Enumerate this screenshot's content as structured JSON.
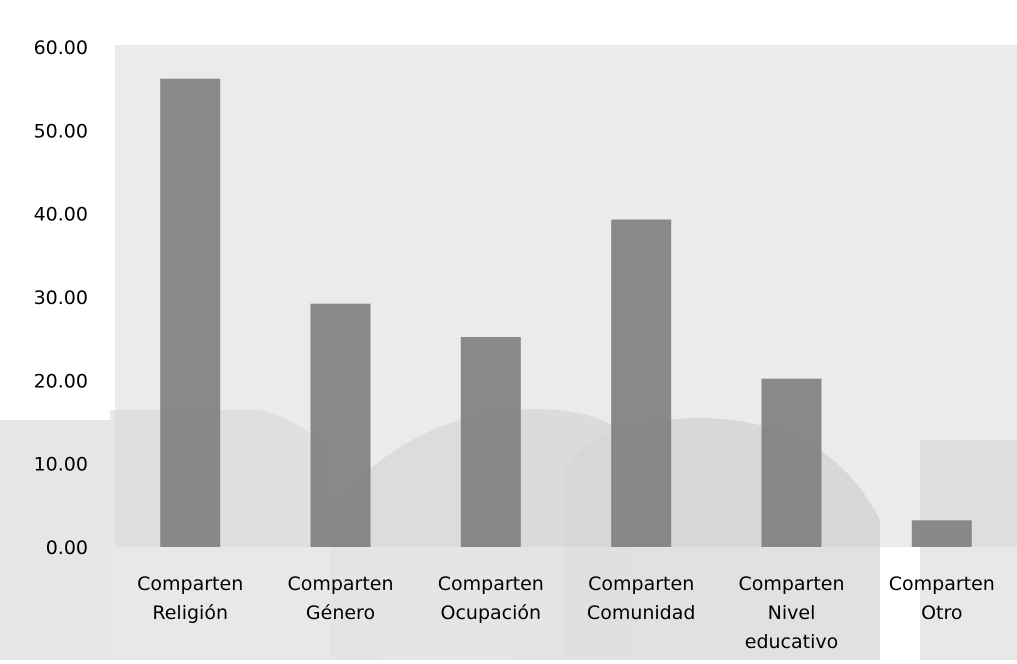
{
  "chart_data": {
    "type": "bar",
    "title": "",
    "xlabel": "",
    "ylabel": "",
    "categories": [
      [
        "Comparten",
        "Religión"
      ],
      [
        "Comparten",
        "Género"
      ],
      [
        "Comparten",
        "Ocupación"
      ],
      [
        "Comparten",
        "Comunidad"
      ],
      [
        "Comparten",
        "Nivel",
        "educativo"
      ],
      [
        "Comparten",
        "Otro"
      ]
    ],
    "values": [
      56.2,
      29.2,
      25.2,
      39.3,
      20.2,
      3.2
    ],
    "ylim": [
      0,
      60
    ],
    "yticks": [
      "0.00",
      "10.00",
      "20.00",
      "30.00",
      "40.00",
      "50.00",
      "60.00"
    ],
    "grid": false,
    "legend": "none",
    "colors": {
      "bar": "#808080",
      "plot_background": "#ebebeb",
      "watermark": "#d2d2d2",
      "text": "#000000"
    }
  }
}
